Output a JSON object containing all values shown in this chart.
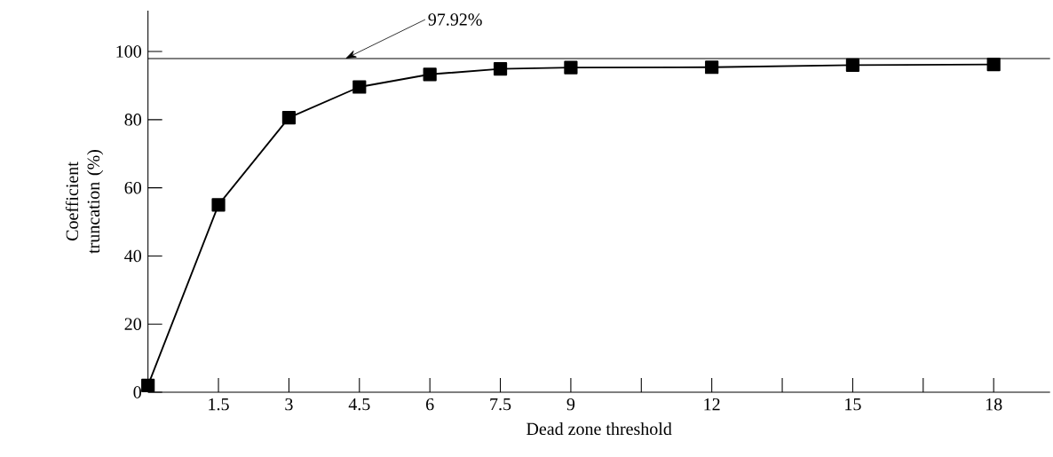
{
  "chart_data": {
    "type": "line",
    "xlabel": "Dead zone threshold",
    "ylabel": "Coefficient truncation (%)",
    "x": [
      0,
      1.5,
      3,
      4.5,
      6,
      7.5,
      9,
      12,
      15,
      18
    ],
    "series": [
      {
        "color": "#000000",
        "values": [
          2,
          55,
          80.6,
          89.6,
          93.3,
          94.9,
          95.3,
          95.4,
          96.0,
          96.2
        ]
      }
    ],
    "xlim": [
      0,
      19.2
    ],
    "ylim": [
      0,
      112
    ],
    "xticks": [
      1.5,
      3,
      4.5,
      6,
      7.5,
      9,
      {
        "value": 10.5,
        "label": null
      },
      12,
      {
        "value": 13.5,
        "label": null
      },
      15,
      {
        "value": 16.5,
        "label": null
      },
      18
    ],
    "yticks": [
      0,
      20,
      40,
      60,
      80,
      100
    ],
    "ref_lines": [
      {
        "axis": "y",
        "value": 97.92,
        "label": "97.92%",
        "color": "#000000"
      }
    ],
    "marker": "square",
    "line_style": "solid",
    "grid": false
  }
}
